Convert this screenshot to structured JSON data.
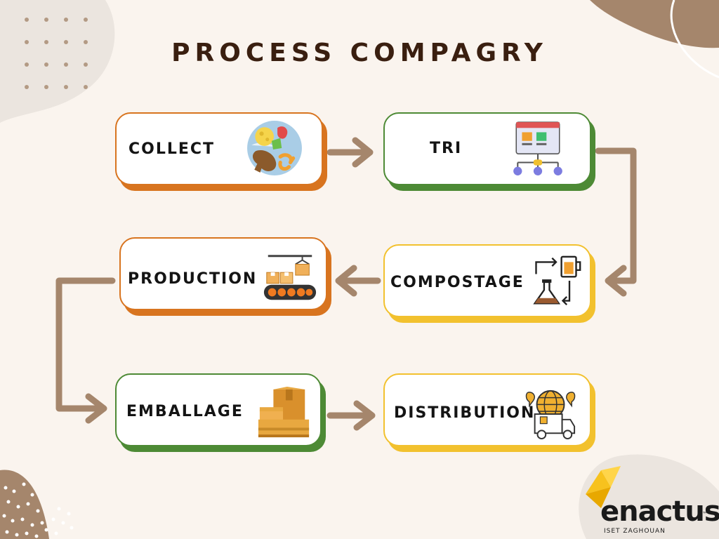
{
  "title": "PROCESS COMPAGRY",
  "colors": {
    "background": "#faf4ee",
    "orange": "#d8741f",
    "green": "#4d8a35",
    "yellow": "#f2c12e",
    "arrow": "#a5866c",
    "title": "#3a1f10"
  },
  "steps": [
    {
      "label": "COLLECT",
      "icon": "food-waste-icon"
    },
    {
      "label": "TRI",
      "icon": "sorting-hierarchy-icon"
    },
    {
      "label": "COMPOSTAGE",
      "icon": "lab-flask-icon"
    },
    {
      "label": "PRODUCTION",
      "icon": "conveyor-belt-icon"
    },
    {
      "label": "EMBALLAGE",
      "icon": "cardboard-box-icon"
    },
    {
      "label": "DISTRIBUTION",
      "icon": "delivery-truck-globe-icon"
    }
  ],
  "logo": {
    "name": "enactus",
    "trademark": "™",
    "subtitle": "ISET ZAGHOUAN"
  }
}
